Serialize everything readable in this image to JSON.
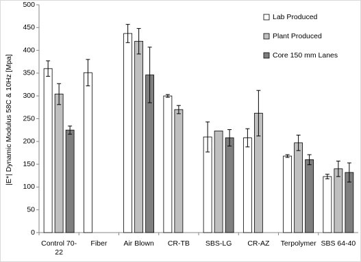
{
  "chart_data": {
    "type": "bar",
    "y_label": "|E*| Dynamic Modulus 58C & 10Hz [Mpa]",
    "categories": [
      "Control 70-22",
      "Fiber",
      "Air Blown",
      "CR-TB",
      "SBS-LG",
      "CR-AZ",
      "Terpolymer",
      "SBS 64-40"
    ],
    "series": [
      {
        "name": "Lab Produced",
        "color": "#ffffff",
        "values": [
          360,
          351,
          437,
          300,
          210,
          208,
          168,
          123
        ],
        "errors": [
          17,
          29,
          20,
          3,
          33,
          20,
          3,
          5
        ]
      },
      {
        "name": "Plant Produced",
        "color": "#bfbfbf",
        "values": [
          304,
          null,
          420,
          270,
          223,
          262,
          197,
          140
        ],
        "errors": [
          23,
          null,
          28,
          9,
          null,
          50,
          17,
          17
        ]
      },
      {
        "name": "Core 150 mm Lanes",
        "color": "#7f7f7f",
        "values": [
          225,
          null,
          346,
          null,
          208,
          null,
          160,
          132
        ],
        "errors": [
          9,
          null,
          61,
          null,
          18,
          null,
          11,
          21
        ]
      }
    ],
    "ylim": [
      0,
      500
    ],
    "yticks": [
      0,
      50,
      100,
      150,
      200,
      250,
      300,
      350,
      400,
      450,
      500
    ],
    "legend": "top-right",
    "grid": false
  }
}
